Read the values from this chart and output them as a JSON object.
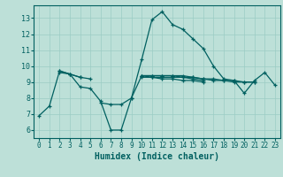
{
  "xlabel": "Humidex (Indice chaleur)",
  "ylabel": "",
  "xlim": [
    -0.5,
    23.5
  ],
  "ylim": [
    5.5,
    13.8
  ],
  "yticks": [
    6,
    7,
    8,
    9,
    10,
    11,
    12,
    13
  ],
  "xticks": [
    0,
    1,
    2,
    3,
    4,
    5,
    6,
    7,
    8,
    9,
    10,
    11,
    12,
    13,
    14,
    15,
    16,
    17,
    18,
    19,
    20,
    21,
    22,
    23
  ],
  "bg_color": "#bde0d8",
  "grid_color": "#9bccc4",
  "line_color": "#006060",
  "lines": [
    [
      6.9,
      7.5,
      9.7,
      9.5,
      8.7,
      8.6,
      7.8,
      6.0,
      6.0,
      8.0,
      10.4,
      12.9,
      13.4,
      12.6,
      12.3,
      11.7,
      11.1,
      10.0,
      9.2,
      9.1,
      8.3,
      9.1,
      9.6,
      8.8
    ],
    [
      null,
      null,
      null,
      null,
      null,
      null,
      7.7,
      7.6,
      7.6,
      8.0,
      9.4,
      9.4,
      9.4,
      9.4,
      9.4,
      9.3,
      9.2,
      9.2,
      9.1,
      9.1,
      9.0,
      9.0,
      null,
      null
    ],
    [
      null,
      null,
      9.7,
      9.5,
      9.3,
      9.2,
      null,
      null,
      null,
      null,
      9.4,
      9.4,
      9.4,
      9.4,
      9.3,
      9.3,
      9.2,
      9.1,
      9.1,
      9.0,
      9.0,
      9.0,
      null,
      null
    ],
    [
      null,
      null,
      9.6,
      9.5,
      9.3,
      null,
      null,
      null,
      null,
      null,
      9.4,
      9.3,
      9.3,
      9.3,
      9.3,
      9.2,
      9.1,
      null,
      null,
      null,
      null,
      null,
      null,
      null
    ],
    [
      null,
      null,
      null,
      null,
      null,
      null,
      null,
      null,
      null,
      null,
      9.3,
      9.3,
      9.2,
      9.2,
      9.1,
      9.1,
      9.0,
      null,
      null,
      null,
      null,
      null,
      null,
      null
    ]
  ]
}
